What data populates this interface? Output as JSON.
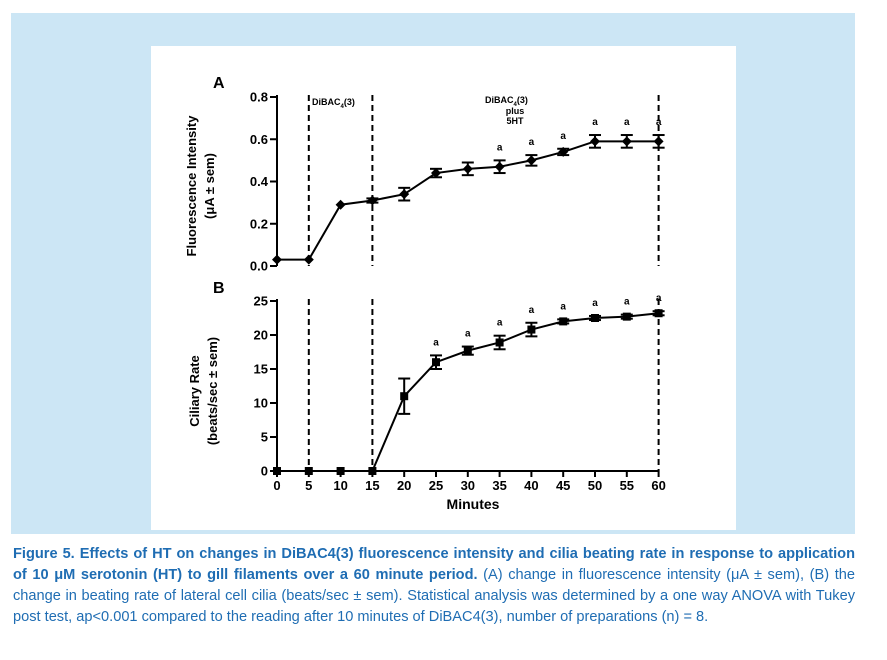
{
  "caption": {
    "bold": "Figure 5. Effects of HT on changes in DiBAC4(3) fluorescence intensity and cilia beating rate in response to application of 10 μM serotonin (HT) to gill filaments over a 60 minute period.",
    "normal": " (A) change in fluorescence intensity (μA ± sem), (B) the change in beating rate of lateral cell cilia (beats/sec ± sem). Statistical analysis was determined by a one way ANOVA with Tukey post test, ap<0.001 compared to the reading after 10 minutes of DiBAC4(3), number of preparations (n) = 8."
  },
  "chart_data": [
    {
      "panel": "A",
      "type": "line",
      "ylabel": "Fluorescence Intensity",
      "ylabel2": "(μA ± sem)",
      "ylim": [
        0,
        0.8
      ],
      "yticks": [
        "0.0",
        "0.2",
        "0.4",
        "0.6",
        "0.8"
      ],
      "ytick_values": [
        0,
        0.2,
        0.4,
        0.6,
        0.8
      ],
      "x": [
        0,
        5,
        10,
        15,
        20,
        25,
        30,
        35,
        40,
        45,
        50,
        55,
        60
      ],
      "values": [
        0.03,
        0.03,
        0.29,
        0.31,
        0.34,
        0.44,
        0.46,
        0.47,
        0.5,
        0.54,
        0.59,
        0.59,
        0.59
      ],
      "errors": [
        0,
        0,
        0,
        0.01,
        0.03,
        0.02,
        0.03,
        0.03,
        0.025,
        0.015,
        0.03,
        0.03,
        0.03
      ],
      "significance": [
        35,
        40,
        45,
        50,
        55,
        60
      ],
      "significance_label": "a",
      "marker": "diamond",
      "annotations": {
        "dibac": "DiBAC",
        "dibac_sub": "4",
        "dibac_tail": "(3)",
        "plus_line1_a": "DiBAC",
        "plus_line1_sub": "4",
        "plus_line1_b": "(3)",
        "plus_line2": "plus",
        "plus_line3": "5HT"
      },
      "vlines": [
        5,
        15,
        60
      ]
    },
    {
      "panel": "B",
      "type": "line",
      "ylabel": "Ciliary Rate",
      "ylabel2": "(beats/sec ± sem)",
      "xlabel": "Minutes",
      "ylim": [
        0,
        25
      ],
      "yticks": [
        "0",
        "5",
        "10",
        "15",
        "20",
        "25"
      ],
      "ytick_values": [
        0,
        5,
        10,
        15,
        20,
        25
      ],
      "x": [
        0,
        5,
        10,
        15,
        20,
        25,
        30,
        35,
        40,
        45,
        50,
        55,
        60
      ],
      "xticks": [
        "0",
        "5",
        "10",
        "15",
        "20",
        "25",
        "30",
        "35",
        "40",
        "45",
        "50",
        "55",
        "60"
      ],
      "values": [
        0,
        0,
        0,
        0,
        11,
        16,
        17.7,
        18.9,
        20.8,
        22.0,
        22.5,
        22.7,
        23.2
      ],
      "errors": [
        0,
        0,
        0,
        0,
        2.6,
        1.0,
        0.6,
        1.0,
        1.0,
        0.3,
        0.3,
        0.3,
        0.3
      ],
      "significance": [
        25,
        30,
        35,
        40,
        45,
        50,
        55,
        60
      ],
      "significance_label": "a",
      "marker": "square",
      "vlines": [
        5,
        15,
        60
      ]
    }
  ]
}
